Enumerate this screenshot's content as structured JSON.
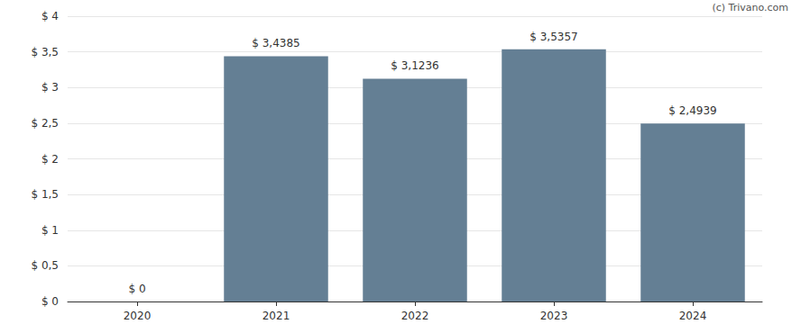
{
  "chart_data": {
    "type": "bar",
    "annotations": [
      "(c) Trivano.com"
    ],
    "categories": [
      "2020",
      "2021",
      "2022",
      "2023",
      "2024"
    ],
    "values": [
      0,
      3.4385,
      3.1236,
      3.5357,
      2.4939
    ],
    "value_labels": [
      "$ 0",
      "$ 3,4385",
      "$ 3,1236",
      "$ 3,5357",
      "$ 2,4939"
    ],
    "data_labels": true,
    "color": "#647f94",
    "ylim": [
      0,
      4
    ],
    "yticks": [
      {
        "value": 0,
        "label": "$ 0"
      },
      {
        "value": 0.5,
        "label": "$ 0,5"
      },
      {
        "value": 1,
        "label": "$ 1"
      },
      {
        "value": 1.5,
        "label": "$ 1,5"
      },
      {
        "value": 2,
        "label": "$ 2"
      },
      {
        "value": 2.5,
        "label": "$ 2,5"
      },
      {
        "value": 3,
        "label": "$ 3"
      },
      {
        "value": 3.5,
        "label": "$ 3,5"
      },
      {
        "value": 4,
        "label": "$ 4"
      }
    ],
    "grid": true
  }
}
